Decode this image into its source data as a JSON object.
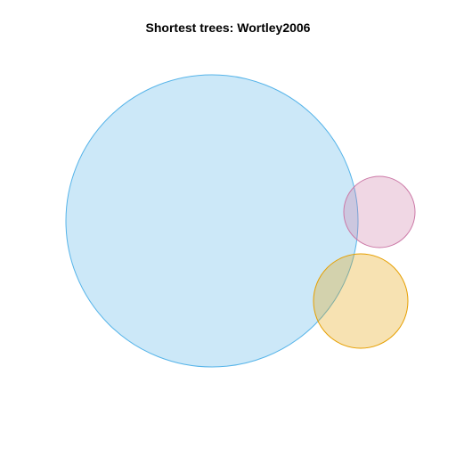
{
  "title": "Shortest trees: Wortley2006",
  "venn": {
    "sets": [
      {
        "id": "set-blue",
        "fill": "#56B4E9",
        "stroke": "#56B4E9",
        "fill_opacity": 0.3
      },
      {
        "id": "set-pink",
        "fill": "#CC79A7",
        "stroke": "#CC79A7",
        "fill_opacity": 0.3
      },
      {
        "id": "set-orange",
        "fill": "#E69F00",
        "stroke": "#E69F00",
        "fill_opacity": 0.3
      }
    ]
  }
}
